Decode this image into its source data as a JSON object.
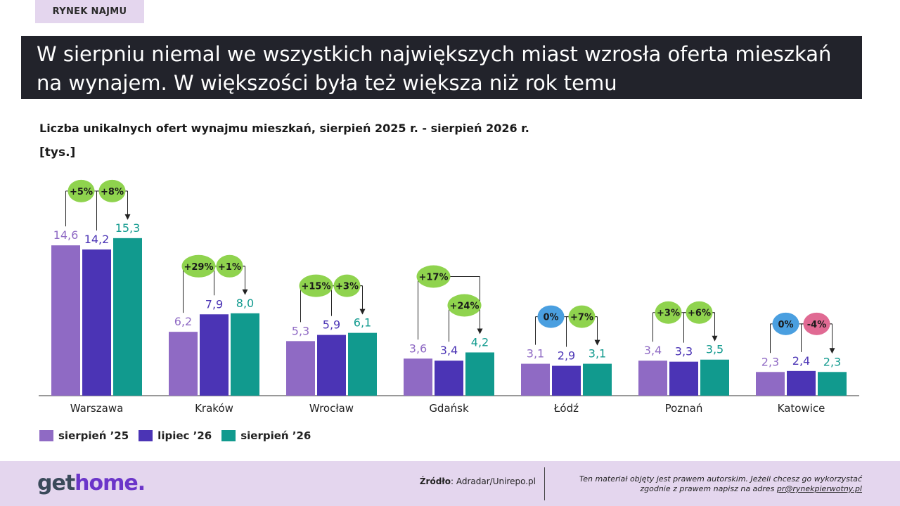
{
  "section_tag": "RYNEK NAJMU",
  "headline": "W sierpniu niemal we wszystkich największych miast wzrosła oferta mieszkań na wynajem. W większości była też większa niż rok temu",
  "chart_data": {
    "type": "bar",
    "title": "Liczba unikalnych ofert wynajmu mieszkań, sierpień 2025 r. - sierpień 2026 r.",
    "unit": "[tys.]",
    "ylim": [
      0,
      16
    ],
    "grid": false,
    "legend_position": "bottom-left",
    "categories": [
      "Warszawa",
      "Kraków",
      "Wrocław",
      "Gdańsk",
      "Łódź",
      "Poznań",
      "Katowice"
    ],
    "series": [
      {
        "name": "sierpień ’25",
        "color": "#8f6ac4",
        "values": [
          14.6,
          6.2,
          5.3,
          3.6,
          3.1,
          3.4,
          2.3
        ],
        "labels": [
          "14,6",
          "6,2",
          "5,3",
          "3,6",
          "3,1",
          "3,4",
          "2,3"
        ]
      },
      {
        "name": "lipiec ’26",
        "color": "#4b34b5",
        "values": [
          14.2,
          7.9,
          5.9,
          3.4,
          2.9,
          3.3,
          2.4
        ],
        "labels": [
          "14,2",
          "7,9",
          "5,9",
          "3,4",
          "2,9",
          "3,3",
          "2,4"
        ]
      },
      {
        "name": "sierpień ’26",
        "color": "#119a8e",
        "values": [
          15.3,
          8.0,
          6.1,
          4.2,
          3.1,
          3.5,
          2.3
        ],
        "labels": [
          "15,3",
          "8,0",
          "6,1",
          "4,2",
          "3,1",
          "3,5",
          "2,3"
        ]
      }
    ],
    "annotations": [
      {
        "yoy": "+5%",
        "mom": "+8%",
        "yoy_color": "#8fd34e",
        "mom_color": "#8fd34e"
      },
      {
        "yoy": "+29%",
        "mom": "+1%",
        "yoy_color": "#8fd34e",
        "mom_color": "#8fd34e"
      },
      {
        "yoy": "+15%",
        "mom": "+3%",
        "yoy_color": "#8fd34e",
        "mom_color": "#8fd34e"
      },
      {
        "yoy": "+17%",
        "mom": "+24%",
        "yoy_color": "#8fd34e",
        "mom_color": "#8fd34e"
      },
      {
        "yoy": "0%",
        "mom": "+7%",
        "yoy_color": "#4a9fe0",
        "mom_color": "#8fd34e"
      },
      {
        "yoy": "+3%",
        "mom": "+6%",
        "yoy_color": "#8fd34e",
        "mom_color": "#8fd34e"
      },
      {
        "yoy": "0%",
        "mom": "-4%",
        "yoy_color": "#4a9fe0",
        "mom_color": "#e06a93"
      }
    ]
  },
  "footer": {
    "logo_get": "get",
    "logo_home": "home.",
    "source_label": "Źródło",
    "source_text": ": Adradar/Unirepo.pl",
    "copyright_line1": "Ten materiał objęty jest prawem autorskim. Jeżeli chcesz go wykorzystać",
    "copyright_line2": "zgodnie z prawem napisz na adres ",
    "copyright_email": "pr@rynekpierwotny.pl"
  }
}
